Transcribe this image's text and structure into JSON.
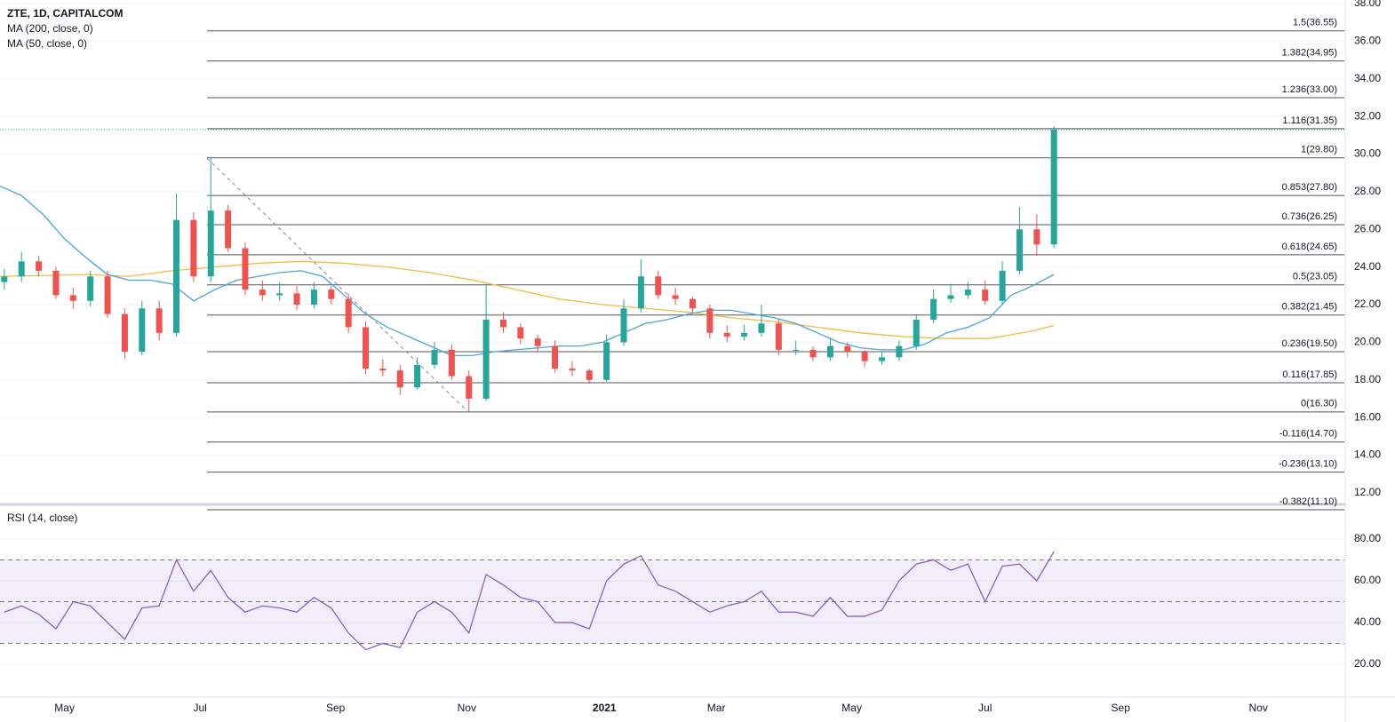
{
  "chart_data": {
    "type": "candlestick",
    "title": "ZTE, 1D, CAPITALCOM",
    "grid": true,
    "up_color": "#26a69a",
    "down_color": "#ef5350",
    "xlim": [
      0,
      625
    ],
    "xticks": [
      {
        "value": 30,
        "label": "May"
      },
      {
        "value": 93,
        "label": "Jul"
      },
      {
        "value": 156,
        "label": "Sep"
      },
      {
        "value": 217,
        "label": "Nov"
      },
      {
        "value": 281,
        "label": "2021"
      },
      {
        "value": 333,
        "label": "Mar"
      },
      {
        "value": 396,
        "label": "May"
      },
      {
        "value": 458,
        "label": "Jul"
      },
      {
        "value": 521,
        "label": "Sep"
      },
      {
        "value": 585,
        "label": "Nov"
      }
    ],
    "ylim": [
      11.43,
      38.19
    ],
    "yticks": [
      {
        "value": 12,
        "label": "12.00"
      },
      {
        "value": 14,
        "label": "14.00"
      },
      {
        "value": 16,
        "label": "16.00"
      },
      {
        "value": 18,
        "label": "18.00"
      },
      {
        "value": 20,
        "label": "20.00"
      },
      {
        "value": 22,
        "label": "22.00"
      },
      {
        "value": 24,
        "label": "24.00"
      },
      {
        "value": 26,
        "label": "26.00"
      },
      {
        "value": 28,
        "label": "28.00"
      },
      {
        "value": 30,
        "label": "30.00"
      },
      {
        "value": 32,
        "label": "32.00"
      },
      {
        "value": 34,
        "label": "34.00"
      },
      {
        "value": 36,
        "label": "36.00"
      },
      {
        "value": 38,
        "label": "38.00"
      }
    ],
    "candles": {
      "x": [
        2,
        10,
        18,
        26,
        34,
        42,
        50,
        58,
        66,
        74,
        82,
        90,
        98,
        106,
        114,
        122,
        130,
        138,
        146,
        154,
        162,
        170,
        178,
        186,
        194,
        202,
        210,
        218,
        226,
        234,
        242,
        250,
        258,
        266,
        274,
        282,
        290,
        298,
        306,
        314,
        322,
        330,
        338,
        346,
        354,
        362,
        370,
        378,
        386,
        394,
        402,
        410,
        418,
        426,
        434,
        442,
        450,
        458,
        466,
        474,
        482,
        490
      ],
      "open": [
        23.2,
        23.5,
        24.3,
        23.8,
        22.5,
        22.2,
        23.5,
        21.5,
        19.5,
        21.8,
        20.5,
        26.5,
        23.5,
        27,
        25,
        22.8,
        22.5,
        22.6,
        22,
        22.8,
        22.3,
        20.8,
        18.6,
        18.5,
        17.6,
        18.8,
        19.6,
        18.2,
        17,
        21.2,
        20.8,
        20.2,
        19.8,
        18.6,
        18.5,
        18,
        20,
        21.8,
        23.5,
        22.5,
        22.3,
        21.8,
        20.5,
        20.3,
        20.5,
        21,
        19.6,
        19.6,
        19.2,
        19.8,
        19.5,
        19,
        19.2,
        19.8,
        21.2,
        22.3,
        22.5,
        22.8,
        22.2,
        23.8,
        26,
        25.2
      ],
      "high": [
        23.9,
        24.8,
        24.6,
        24.0,
        22.9,
        23.8,
        23.8,
        21.8,
        22.2,
        22.2,
        27.9,
        26.9,
        29.8,
        27.3,
        25.3,
        23.3,
        23.2,
        23.0,
        23.2,
        23.0,
        22.6,
        21.1,
        19.1,
        18.8,
        19.2,
        20.0,
        19.9,
        18.5,
        23.1,
        21.6,
        21.0,
        20.4,
        20.1,
        19.0,
        18.6,
        20.4,
        22.3,
        24.4,
        23.8,
        22.9,
        22.4,
        22.0,
        20.9,
        20.9,
        22.0,
        21.2,
        20.1,
        19.8,
        20.2,
        20.0,
        19.6,
        19.5,
        20.1,
        21.5,
        22.8,
        23.1,
        23.2,
        23.3,
        24.3,
        27.2,
        26.8,
        31.5
      ],
      "low": [
        22.8,
        23.2,
        23.5,
        22.3,
        21.8,
        21.9,
        21.3,
        19.1,
        19.3,
        20.1,
        20.3,
        23.2,
        23.2,
        24.8,
        22.5,
        22.2,
        22.2,
        21.7,
        21.8,
        22.0,
        20.5,
        18.3,
        18.2,
        17.2,
        17.5,
        18.6,
        18.0,
        16.3,
        16.9,
        20.5,
        19.9,
        19.5,
        18.4,
        18.2,
        17.8,
        17.9,
        19.8,
        21.6,
        22.3,
        22.0,
        21.5,
        20.2,
        20.0,
        20.1,
        20.3,
        19.3,
        19.3,
        19.0,
        19.0,
        19.2,
        18.7,
        18.8,
        19.0,
        19.6,
        21.0,
        22.1,
        22.3,
        22.0,
        22.0,
        23.6,
        24.6,
        25.0
      ],
      "close": [
        23.5,
        24.3,
        23.8,
        22.5,
        22.2,
        23.5,
        21.5,
        19.5,
        21.8,
        20.5,
        26.5,
        23.5,
        27,
        25,
        22.8,
        22.5,
        22.6,
        22,
        22.8,
        22.3,
        20.8,
        18.6,
        18.5,
        17.6,
        18.8,
        19.6,
        18.2,
        17,
        21.2,
        20.8,
        20.2,
        19.8,
        18.6,
        18.5,
        18,
        20,
        21.8,
        23.5,
        22.5,
        22.3,
        21.8,
        20.5,
        20.3,
        20.5,
        21,
        19.6,
        19.6,
        19.2,
        19.8,
        19.5,
        19,
        19.2,
        19.8,
        21.2,
        22.3,
        22.5,
        22.8,
        22.2,
        23.8,
        26,
        25.2,
        31.3
      ]
    },
    "series": [
      {
        "name": "MA (200, close, 0)",
        "color": "#f5b942",
        "x": [
          0,
          40,
          60,
          80,
          100,
          120,
          140,
          160,
          180,
          200,
          220,
          240,
          260,
          280,
          300,
          320,
          340,
          360,
          380,
          400,
          420,
          440,
          460,
          480,
          490
        ],
        "values": [
          23.5,
          23.6,
          23.5,
          23.8,
          24.0,
          24.2,
          24.3,
          24.2,
          24.0,
          23.7,
          23.3,
          22.8,
          22.3,
          22.0,
          21.8,
          21.6,
          21.3,
          21.1,
          20.8,
          20.5,
          20.3,
          20.2,
          20.2,
          20.6,
          20.9
        ]
      },
      {
        "name": "MA (50, close, 0)",
        "color": "#4aa3df",
        "x": [
          0,
          10,
          20,
          30,
          40,
          50,
          60,
          70,
          80,
          90,
          100,
          110,
          120,
          130,
          140,
          150,
          160,
          170,
          180,
          190,
          200,
          210,
          220,
          230,
          240,
          250,
          260,
          270,
          280,
          290,
          300,
          310,
          320,
          330,
          340,
          350,
          360,
          370,
          380,
          390,
          400,
          410,
          420,
          430,
          440,
          450,
          460,
          470,
          480,
          490
        ],
        "values": [
          28.3,
          27.8,
          26.8,
          25.5,
          24.5,
          23.6,
          23.3,
          23.3,
          23.1,
          22.2,
          22.8,
          23.3,
          23.5,
          23.7,
          23.8,
          23.5,
          22.5,
          21.5,
          20.8,
          20.3,
          19.8,
          19.3,
          19.3,
          19.5,
          19.6,
          19.7,
          19.8,
          19.8,
          20.0,
          20.5,
          21.0,
          21.2,
          21.5,
          21.7,
          21.7,
          21.5,
          21.3,
          21.0,
          20.5,
          20.0,
          19.7,
          19.6,
          19.6,
          19.9,
          20.5,
          20.8,
          21.3,
          22.5,
          23.0,
          23.6
        ]
      }
    ],
    "fib_levels": [
      {
        "label": "1.5(36.55)",
        "value": 36.55
      },
      {
        "label": "1.382(34.95)",
        "value": 34.95
      },
      {
        "label": "1.236(33.00)",
        "value": 33.0
      },
      {
        "label": "1.116(31.35)",
        "value": 31.35
      },
      {
        "label": "1(29.80)",
        "value": 29.8
      },
      {
        "label": "0.853(27.80)",
        "value": 27.8
      },
      {
        "label": "0.736(26.25)",
        "value": 26.25
      },
      {
        "label": "0.618(24.65)",
        "value": 24.65
      },
      {
        "label": "0.5(23.05)",
        "value": 23.05
      },
      {
        "label": "0.382(21.45)",
        "value": 21.45
      },
      {
        "label": "0.236(19.50)",
        "value": 19.5
      },
      {
        "label": "0.116(17.85)",
        "value": 17.85
      },
      {
        "label": "0(16.30)",
        "value": 16.3
      },
      {
        "label": "-0.116(14.70)",
        "value": 14.7
      },
      {
        "label": "-0.236(13.10)",
        "value": 13.1
      },
      {
        "label": "-0.382(11.10)",
        "value": 11.1
      }
    ],
    "rsi": {
      "name": "RSI (14, close)",
      "color": "#7e57c2",
      "ylim": [
        4.3,
        95.7
      ],
      "yticks": [
        {
          "value": 20,
          "label": "20.00"
        },
        {
          "value": 40,
          "label": "40.00"
        },
        {
          "value": 60,
          "label": "60.00"
        },
        {
          "value": 80,
          "label": "80.00"
        }
      ],
      "bands": [
        30,
        50,
        70
      ],
      "x": [
        2,
        10,
        18,
        26,
        34,
        42,
        50,
        58,
        66,
        74,
        82,
        90,
        98,
        106,
        114,
        122,
        130,
        138,
        146,
        154,
        162,
        170,
        178,
        186,
        194,
        202,
        210,
        218,
        226,
        234,
        242,
        250,
        258,
        266,
        274,
        282,
        290,
        298,
        306,
        314,
        322,
        330,
        338,
        346,
        354,
        362,
        370,
        378,
        386,
        394,
        402,
        410,
        418,
        426,
        434,
        442,
        450,
        458,
        466,
        474,
        482,
        490
      ],
      "values": [
        45,
        48,
        44,
        37,
        50,
        48,
        40,
        32,
        47,
        48,
        70,
        55,
        65,
        52,
        45,
        48,
        47,
        45,
        52,
        47,
        35,
        27,
        30,
        28,
        45,
        50,
        45,
        35,
        63,
        58,
        52,
        50,
        40,
        40,
        37,
        60,
        68,
        72,
        58,
        55,
        50,
        45,
        48,
        50,
        55,
        45,
        45,
        43,
        52,
        43,
        43,
        46,
        60,
        68,
        70,
        65,
        68,
        50,
        67,
        68,
        60,
        74
      ]
    }
  }
}
